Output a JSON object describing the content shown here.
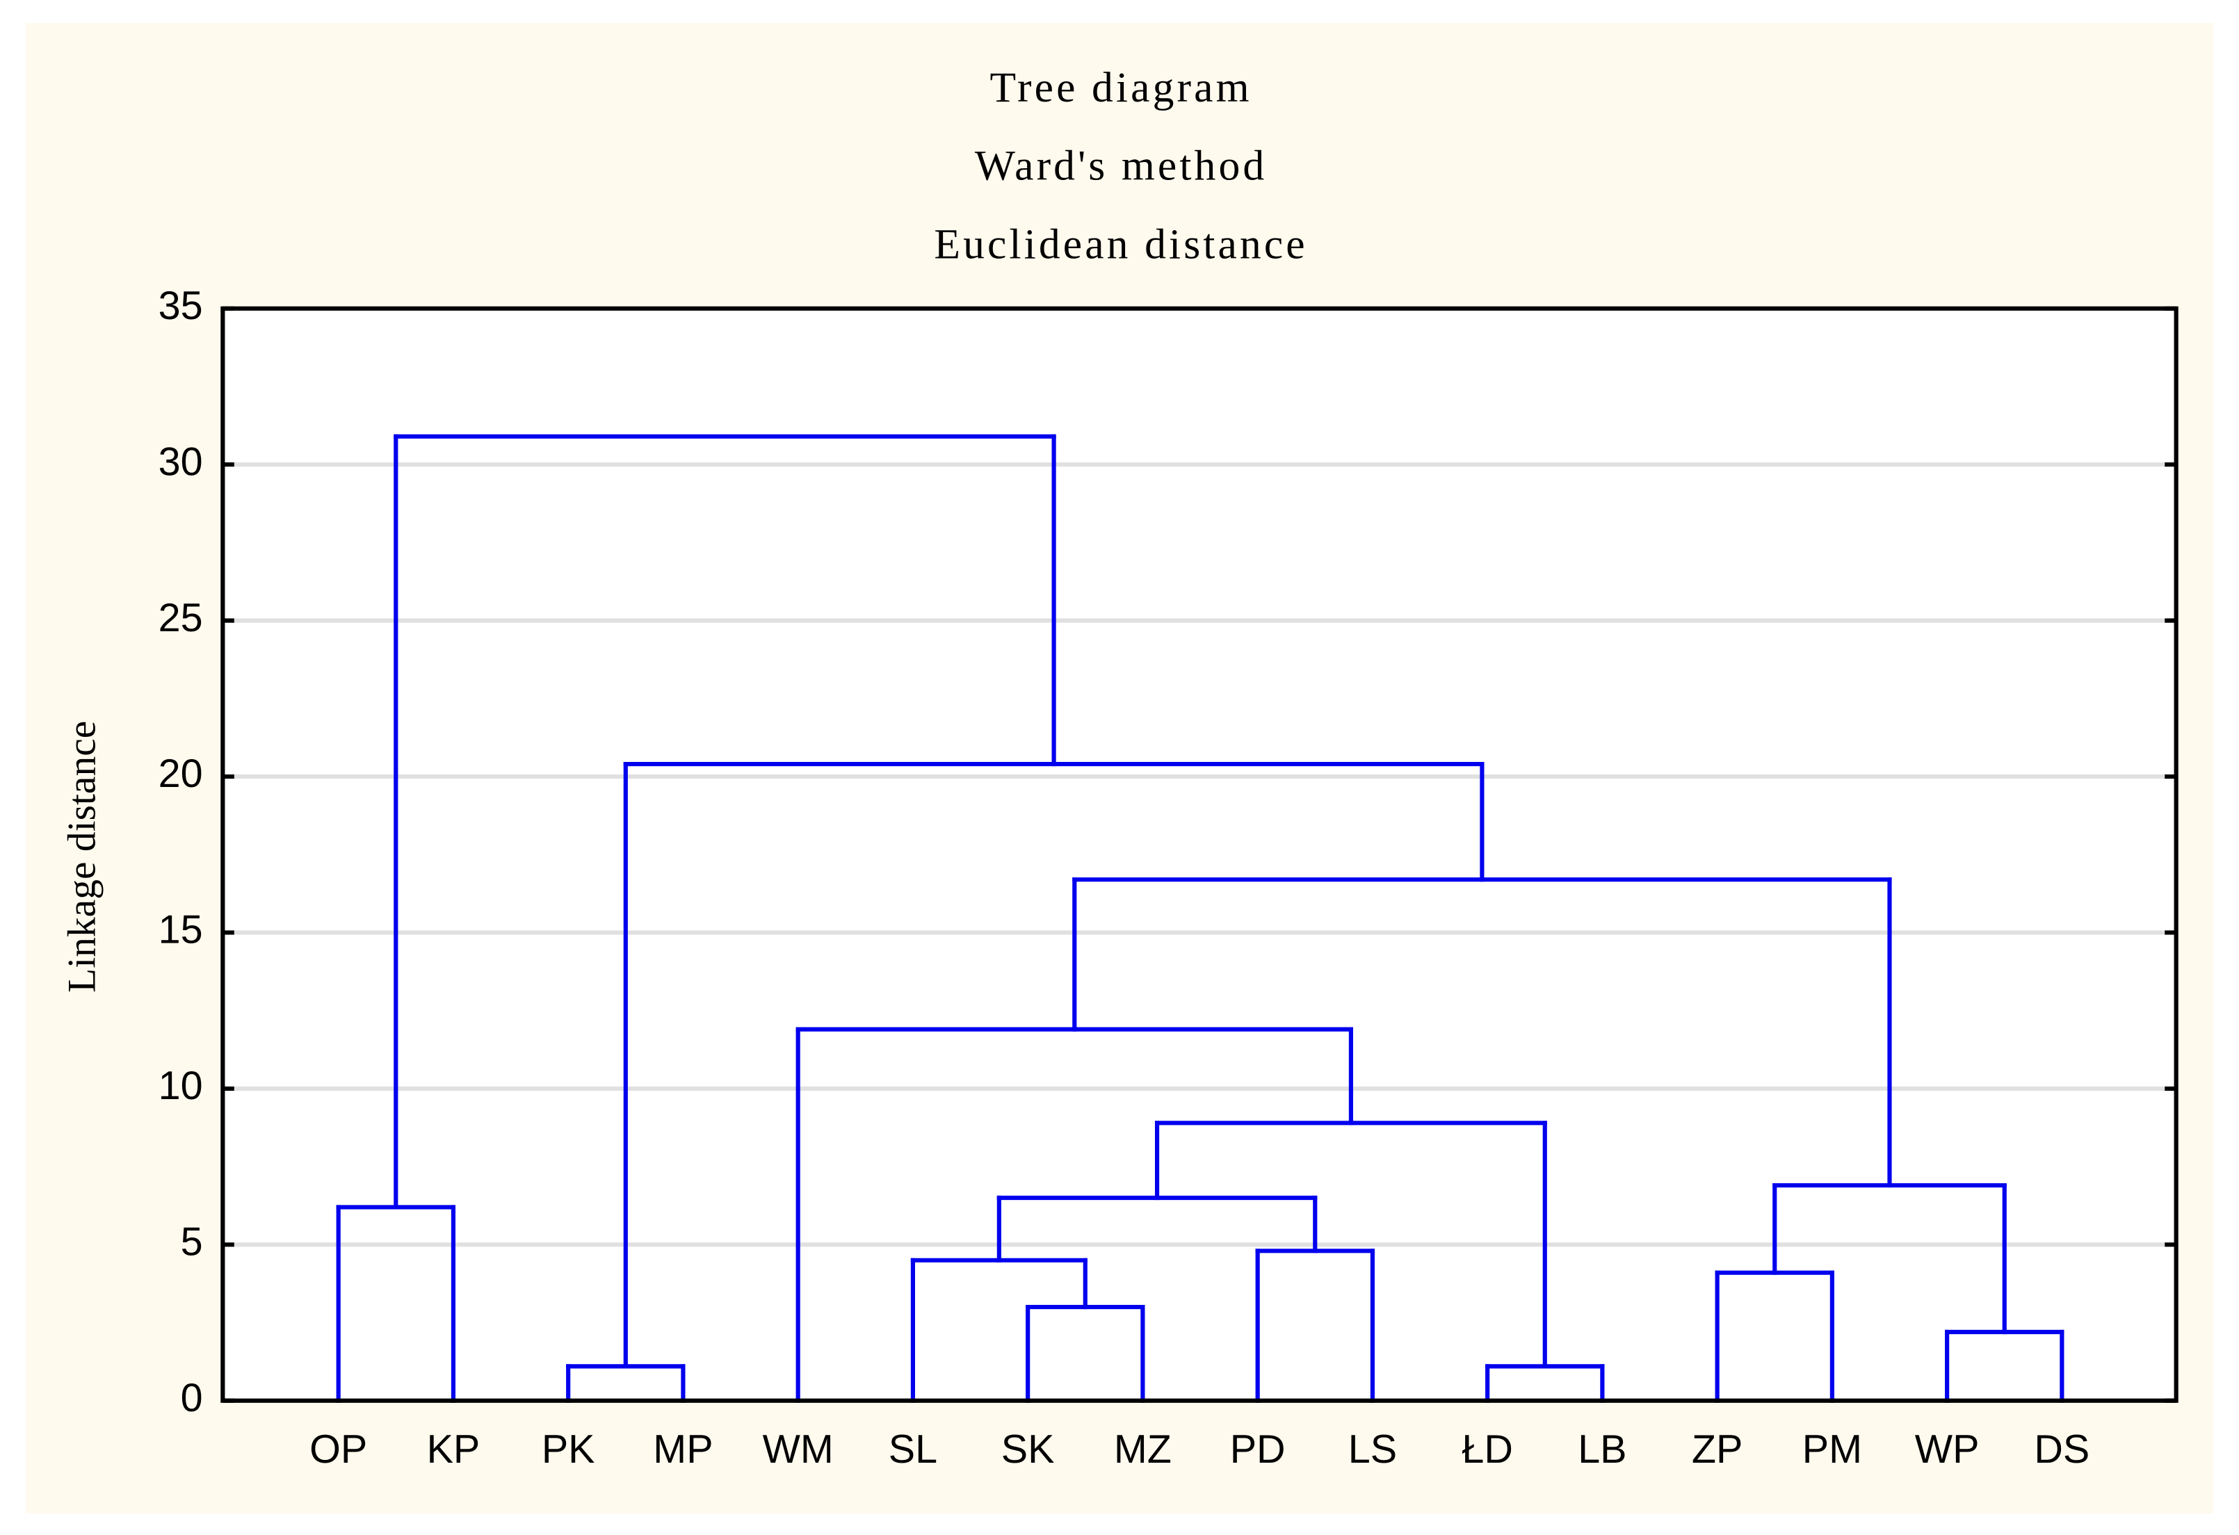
{
  "chart_data": {
    "type": "dendrogram",
    "title": "Tree diagram",
    "subtitle": "Ward's method",
    "subtitle2": "Euclidean distance",
    "y_label": "Linkage distance",
    "ylim": [
      0,
      35
    ],
    "yticks": [
      0,
      5,
      10,
      15,
      20,
      25,
      30,
      35
    ],
    "grid": true,
    "color": "#0000ee",
    "tree": {
      "height": 30.9,
      "children": [
        {
          "height": 6.2,
          "children": [
            "OP",
            "KP"
          ]
        },
        {
          "height": 20.4,
          "children": [
            {
              "height": 1.1,
              "children": [
                "PK",
                "MP"
              ]
            },
            {
              "height": 16.7,
              "children": [
                {
                  "height": 11.9,
                  "children": [
                    "WM",
                    {
                      "height": 8.9,
                      "children": [
                        {
                          "height": 6.5,
                          "children": [
                            {
                              "height": 4.5,
                              "children": [
                                "SL",
                                {
                                  "height": 3.0,
                                  "children": [
                                    "SK",
                                    "MZ"
                                  ]
                                }
                              ]
                            },
                            {
                              "height": 4.8,
                              "children": [
                                "PD",
                                "LS"
                              ]
                            }
                          ]
                        },
                        {
                          "height": 1.1,
                          "children": [
                            "ŁD",
                            "LB"
                          ]
                        }
                      ]
                    }
                  ]
                },
                {
                  "height": 6.9,
                  "children": [
                    {
                      "height": 4.1,
                      "children": [
                        "ZP",
                        "PM"
                      ]
                    },
                    {
                      "height": 2.2,
                      "children": [
                        "WP",
                        "DS"
                      ]
                    }
                  ]
                }
              ]
            }
          ]
        }
      ]
    }
  }
}
